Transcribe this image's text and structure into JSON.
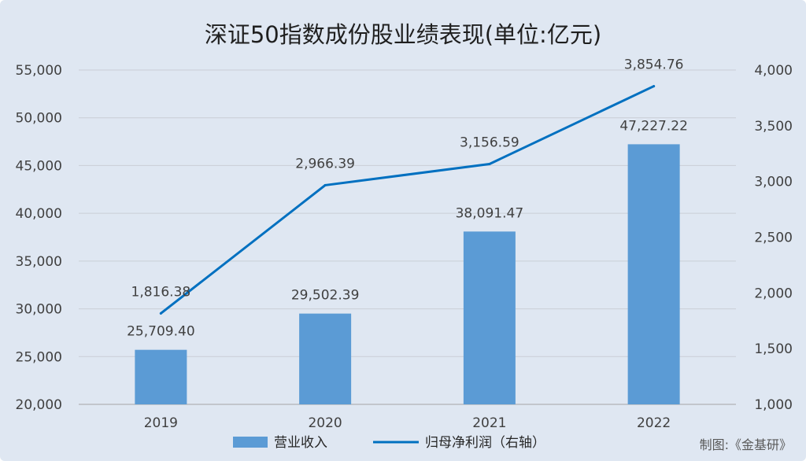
{
  "chart_data": {
    "type": "bar+line",
    "title": "深证50指数成份股业绩表现(单位:亿元)",
    "categories": [
      "2019",
      "2020",
      "2021",
      "2022"
    ],
    "series": [
      {
        "name": "营业收入",
        "type": "bar",
        "axis": "left",
        "values": [
          25709.4,
          29502.39,
          38091.47,
          47227.22
        ],
        "labels": [
          "25,709.40",
          "29,502.39",
          "38,091.47",
          "47,227.22"
        ],
        "color": "#5b9bd5"
      },
      {
        "name": "归母净利润（右轴）",
        "type": "line",
        "axis": "right",
        "values": [
          1816.38,
          2966.39,
          3156.59,
          3854.76
        ],
        "labels": [
          "1,816.38",
          "2,966.39",
          "3,156.59",
          "3,854.76"
        ],
        "color": "#0070c0"
      }
    ],
    "y_left": {
      "min": 20000,
      "max": 55000,
      "step": 5000,
      "ticks": [
        "20,000",
        "25,000",
        "30,000",
        "35,000",
        "40,000",
        "45,000",
        "50,000",
        "55,000"
      ]
    },
    "y_right": {
      "min": 1000,
      "max": 4000,
      "step": 500,
      "ticks": [
        "1,000",
        "1,500",
        "2,000",
        "2,500",
        "3,000",
        "3,500",
        "4,000"
      ]
    },
    "grid": true,
    "legend": "bottom-center",
    "credit": "制图:《金基研》"
  }
}
